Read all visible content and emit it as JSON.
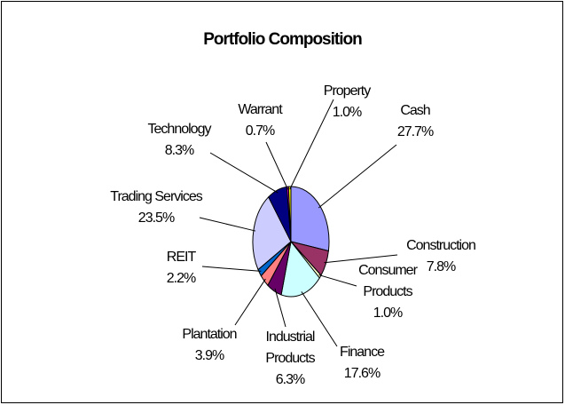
{
  "chart_data": {
    "type": "pie",
    "title": "Portfolio Composition",
    "categories": [
      "Cash",
      "Construction",
      "Consumer Products",
      "Finance",
      "Industrial Products",
      "Plantation",
      "REIT",
      "Trading Services",
      "Technology",
      "Warrant",
      "Property"
    ],
    "values": [
      27.7,
      7.8,
      1.0,
      17.6,
      6.3,
      3.9,
      2.2,
      23.5,
      8.3,
      0.7,
      1.0
    ],
    "value_labels": [
      "27.7%",
      "7.8%",
      "1.0%",
      "17.6%",
      "6.3%",
      "3.9%",
      "2.2%",
      "23.5%",
      "8.3%",
      "0.7%",
      "1.0%"
    ],
    "colors": [
      "#9999ff",
      "#993366",
      "#ffffcc",
      "#ccffff",
      "#660066",
      "#ff8080",
      "#0066cc",
      "#ccccff",
      "#000080",
      "#ff00ff",
      "#ffff00"
    ]
  }
}
